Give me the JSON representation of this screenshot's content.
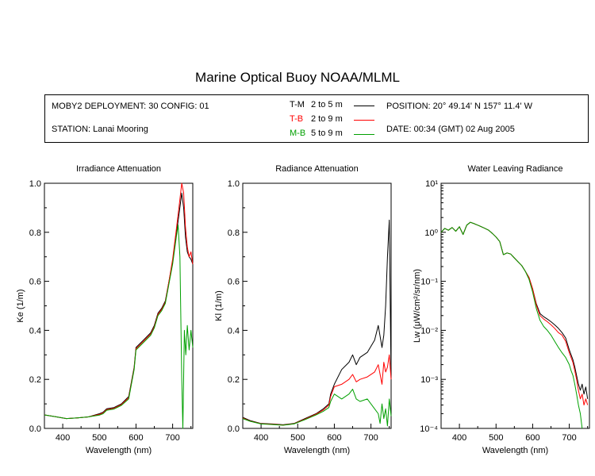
{
  "title": "Marine Optical Buoy NOAA/MLML",
  "info": {
    "deployment": "MOBY2 DEPLOYMENT: 30 CONFIG: 01",
    "station": "STATION: Lanai Mooring",
    "position": "POSITION: 20° 49.14' N   157° 11.4' W",
    "date": "DATE: 00:34 (GMT) 02 Aug 2005",
    "legend": [
      {
        "code": "T-M",
        "range": "2 to 5  m",
        "color": "#000000"
      },
      {
        "code": "T-B",
        "range": "2 to 9  m",
        "color": "#ff0000"
      },
      {
        "code": "M-B",
        "range": "5 to 9  m",
        "color": "#00a000"
      }
    ]
  },
  "chart_data": [
    {
      "type": "line",
      "title": "Irradiance Attenuation",
      "xlabel": "Wavelength (nm)",
      "ylabel": "Ke  (1/m)",
      "xlim": [
        350,
        755
      ],
      "ylim": [
        0.0,
        1.0
      ],
      "xticks": [
        "400",
        "500",
        "600",
        "700"
      ],
      "yticks": [
        "0.0",
        "0.2",
        "0.4",
        "0.6",
        "0.8",
        "1.0"
      ],
      "series": [
        {
          "name": "T-M",
          "color": "#000000",
          "x": [
            350,
            380,
            410,
            440,
            470,
            500,
            510,
            520,
            540,
            560,
            580,
            595,
            600,
            620,
            640,
            650,
            660,
            670,
            680,
            690,
            700,
            710,
            718,
            725,
            730,
            735,
            740,
            745,
            750,
            755
          ],
          "y": [
            0.055,
            0.048,
            0.04,
            0.043,
            0.047,
            0.06,
            0.066,
            0.08,
            0.085,
            0.1,
            0.13,
            0.25,
            0.33,
            0.36,
            0.39,
            0.42,
            0.47,
            0.49,
            0.52,
            0.6,
            0.68,
            0.79,
            0.88,
            0.96,
            0.9,
            0.78,
            0.72,
            0.7,
            0.69,
            0.67
          ]
        },
        {
          "name": "T-B",
          "color": "#ff0000",
          "x": [
            350,
            380,
            410,
            440,
            470,
            500,
            510,
            520,
            540,
            560,
            580,
            595,
            600,
            620,
            640,
            650,
            660,
            670,
            680,
            690,
            700,
            710,
            718,
            725,
            730,
            735,
            740,
            745,
            750,
            755
          ],
          "y": [
            0.055,
            0.048,
            0.04,
            0.043,
            0.047,
            0.057,
            0.063,
            0.077,
            0.082,
            0.097,
            0.125,
            0.245,
            0.325,
            0.355,
            0.385,
            0.415,
            0.465,
            0.485,
            0.515,
            0.6,
            0.69,
            0.81,
            0.91,
            1.0,
            0.96,
            0.82,
            0.74,
            0.7,
            0.72,
            0.67
          ]
        },
        {
          "name": "M-B",
          "color": "#00a000",
          "x": [
            350,
            380,
            410,
            440,
            470,
            500,
            510,
            520,
            540,
            560,
            580,
            595,
            600,
            620,
            640,
            650,
            660,
            670,
            680,
            690,
            700,
            710,
            715,
            720,
            725,
            728,
            732,
            736,
            740,
            745,
            750,
            755
          ],
          "y": [
            0.055,
            0.048,
            0.04,
            0.043,
            0.047,
            0.054,
            0.06,
            0.074,
            0.079,
            0.094,
            0.12,
            0.24,
            0.32,
            0.35,
            0.38,
            0.41,
            0.46,
            0.48,
            0.51,
            0.59,
            0.67,
            0.78,
            0.83,
            0.7,
            0.2,
            0.0,
            0.4,
            0.3,
            0.42,
            0.32,
            0.4,
            0.33
          ]
        }
      ]
    },
    {
      "type": "line",
      "title": "Radiance Attenuation",
      "xlabel": "Wavelength (nm)",
      "ylabel": "Kl  (1/m)",
      "xlim": [
        350,
        755
      ],
      "ylim": [
        0.0,
        1.0
      ],
      "xticks": [
        "400",
        "500",
        "600",
        "700"
      ],
      "yticks": [
        "0.0",
        "0.2",
        "0.4",
        "0.6",
        "0.8",
        "1.0"
      ],
      "series": [
        {
          "name": "T-M",
          "color": "#000000",
          "x": [
            350,
            370,
            400,
            430,
            460,
            490,
            520,
            550,
            570,
            585,
            590,
            600,
            620,
            640,
            650,
            660,
            670,
            690,
            710,
            720,
            730,
            735,
            740,
            745,
            750,
            755
          ],
          "y": [
            0.045,
            0.032,
            0.02,
            0.018,
            0.015,
            0.02,
            0.04,
            0.06,
            0.08,
            0.1,
            0.14,
            0.18,
            0.24,
            0.27,
            0.3,
            0.26,
            0.29,
            0.31,
            0.36,
            0.42,
            0.33,
            0.38,
            0.5,
            0.7,
            0.85,
            0.2
          ]
        },
        {
          "name": "T-B",
          "color": "#ff0000",
          "x": [
            350,
            370,
            400,
            430,
            460,
            490,
            520,
            550,
            570,
            585,
            590,
            600,
            620,
            640,
            650,
            660,
            670,
            690,
            710,
            720,
            730,
            735,
            740,
            745,
            750,
            755
          ],
          "y": [
            0.042,
            0.03,
            0.019,
            0.017,
            0.014,
            0.019,
            0.038,
            0.058,
            0.075,
            0.095,
            0.13,
            0.17,
            0.18,
            0.2,
            0.22,
            0.19,
            0.2,
            0.21,
            0.23,
            0.26,
            0.18,
            0.27,
            0.23,
            0.25,
            0.3,
            0.2
          ]
        },
        {
          "name": "M-B",
          "color": "#00a000",
          "x": [
            350,
            370,
            400,
            430,
            460,
            490,
            520,
            550,
            570,
            585,
            590,
            600,
            620,
            640,
            650,
            660,
            670,
            690,
            710,
            720,
            725,
            730,
            735,
            740,
            745,
            750,
            755
          ],
          "y": [
            0.04,
            0.029,
            0.018,
            0.016,
            0.013,
            0.018,
            0.036,
            0.055,
            0.07,
            0.085,
            0.11,
            0.14,
            0.12,
            0.14,
            0.16,
            0.12,
            0.11,
            0.12,
            0.08,
            0.06,
            0.02,
            0.1,
            0.04,
            0.08,
            0.01,
            0.12,
            0.05
          ]
        }
      ]
    },
    {
      "type": "line",
      "title": "Water Leaving Radiance",
      "xlabel": "Wavelength (nm)",
      "ylabel": "Lw  (μW/cm²/sr/nm)",
      "yscale": "log",
      "xlim": [
        350,
        755
      ],
      "ylim": [
        0.0001,
        10
      ],
      "xticks": [
        "400",
        "500",
        "600",
        "700"
      ],
      "yticks": [
        "10⁻⁴",
        "10⁻³",
        "10⁻²",
        "10⁻¹",
        "10⁰",
        "10¹"
      ],
      "series": [
        {
          "name": "T-M",
          "color": "#000000",
          "x": [
            350,
            360,
            370,
            380,
            390,
            400,
            410,
            420,
            430,
            440,
            450,
            460,
            470,
            480,
            490,
            500,
            510,
            520,
            530,
            540,
            550,
            560,
            570,
            580,
            590,
            600,
            610,
            620,
            630,
            640,
            650,
            660,
            670,
            680,
            690,
            700,
            710,
            715,
            720,
            725,
            730,
            735,
            740,
            745,
            750
          ],
          "y": [
            1.0,
            1.2,
            1.1,
            1.25,
            1.05,
            1.3,
            0.9,
            1.4,
            1.6,
            1.5,
            1.4,
            1.3,
            1.2,
            1.1,
            0.95,
            0.8,
            0.65,
            0.35,
            0.38,
            0.36,
            0.3,
            0.25,
            0.21,
            0.16,
            0.12,
            0.07,
            0.035,
            0.022,
            0.019,
            0.017,
            0.015,
            0.013,
            0.011,
            0.009,
            0.007,
            0.004,
            0.0025,
            0.0018,
            0.0012,
            0.0008,
            0.0006,
            0.0008,
            0.0005,
            0.0007,
            0.0004
          ]
        },
        {
          "name": "T-B",
          "color": "#ff0000",
          "x": [
            350,
            360,
            370,
            380,
            390,
            400,
            410,
            420,
            430,
            440,
            450,
            460,
            470,
            480,
            490,
            500,
            510,
            520,
            530,
            540,
            550,
            560,
            570,
            580,
            590,
            600,
            610,
            620,
            630,
            640,
            650,
            660,
            670,
            680,
            690,
            700,
            710,
            715,
            720,
            725,
            730,
            735,
            740,
            745,
            750
          ],
          "y": [
            1.0,
            1.2,
            1.1,
            1.25,
            1.05,
            1.3,
            0.9,
            1.4,
            1.6,
            1.5,
            1.4,
            1.3,
            1.2,
            1.1,
            0.95,
            0.8,
            0.65,
            0.35,
            0.38,
            0.36,
            0.3,
            0.25,
            0.21,
            0.16,
            0.12,
            0.07,
            0.033,
            0.02,
            0.017,
            0.015,
            0.013,
            0.011,
            0.009,
            0.008,
            0.006,
            0.0035,
            0.0022,
            0.0015,
            0.001,
            0.0006,
            0.0004,
            0.0005,
            0.0003,
            0.0004,
            0.0003
          ]
        },
        {
          "name": "M-B",
          "color": "#00a000",
          "x": [
            350,
            360,
            370,
            380,
            390,
            400,
            410,
            420,
            430,
            440,
            450,
            460,
            470,
            480,
            490,
            500,
            510,
            520,
            530,
            540,
            550,
            560,
            570,
            580,
            590,
            600,
            610,
            620,
            630,
            640,
            650,
            660,
            670,
            680,
            690,
            700,
            705,
            710,
            715,
            720,
            725,
            730,
            735
          ],
          "y": [
            1.0,
            1.2,
            1.1,
            1.25,
            1.05,
            1.3,
            0.9,
            1.4,
            1.6,
            1.5,
            1.4,
            1.3,
            1.2,
            1.1,
            0.95,
            0.8,
            0.65,
            0.35,
            0.38,
            0.36,
            0.3,
            0.25,
            0.21,
            0.16,
            0.11,
            0.06,
            0.028,
            0.016,
            0.012,
            0.01,
            0.008,
            0.006,
            0.0045,
            0.0035,
            0.0028,
            0.002,
            0.0015,
            0.0012,
            0.0008,
            0.0005,
            0.0003,
            0.0002,
            0.0001
          ]
        }
      ]
    }
  ]
}
